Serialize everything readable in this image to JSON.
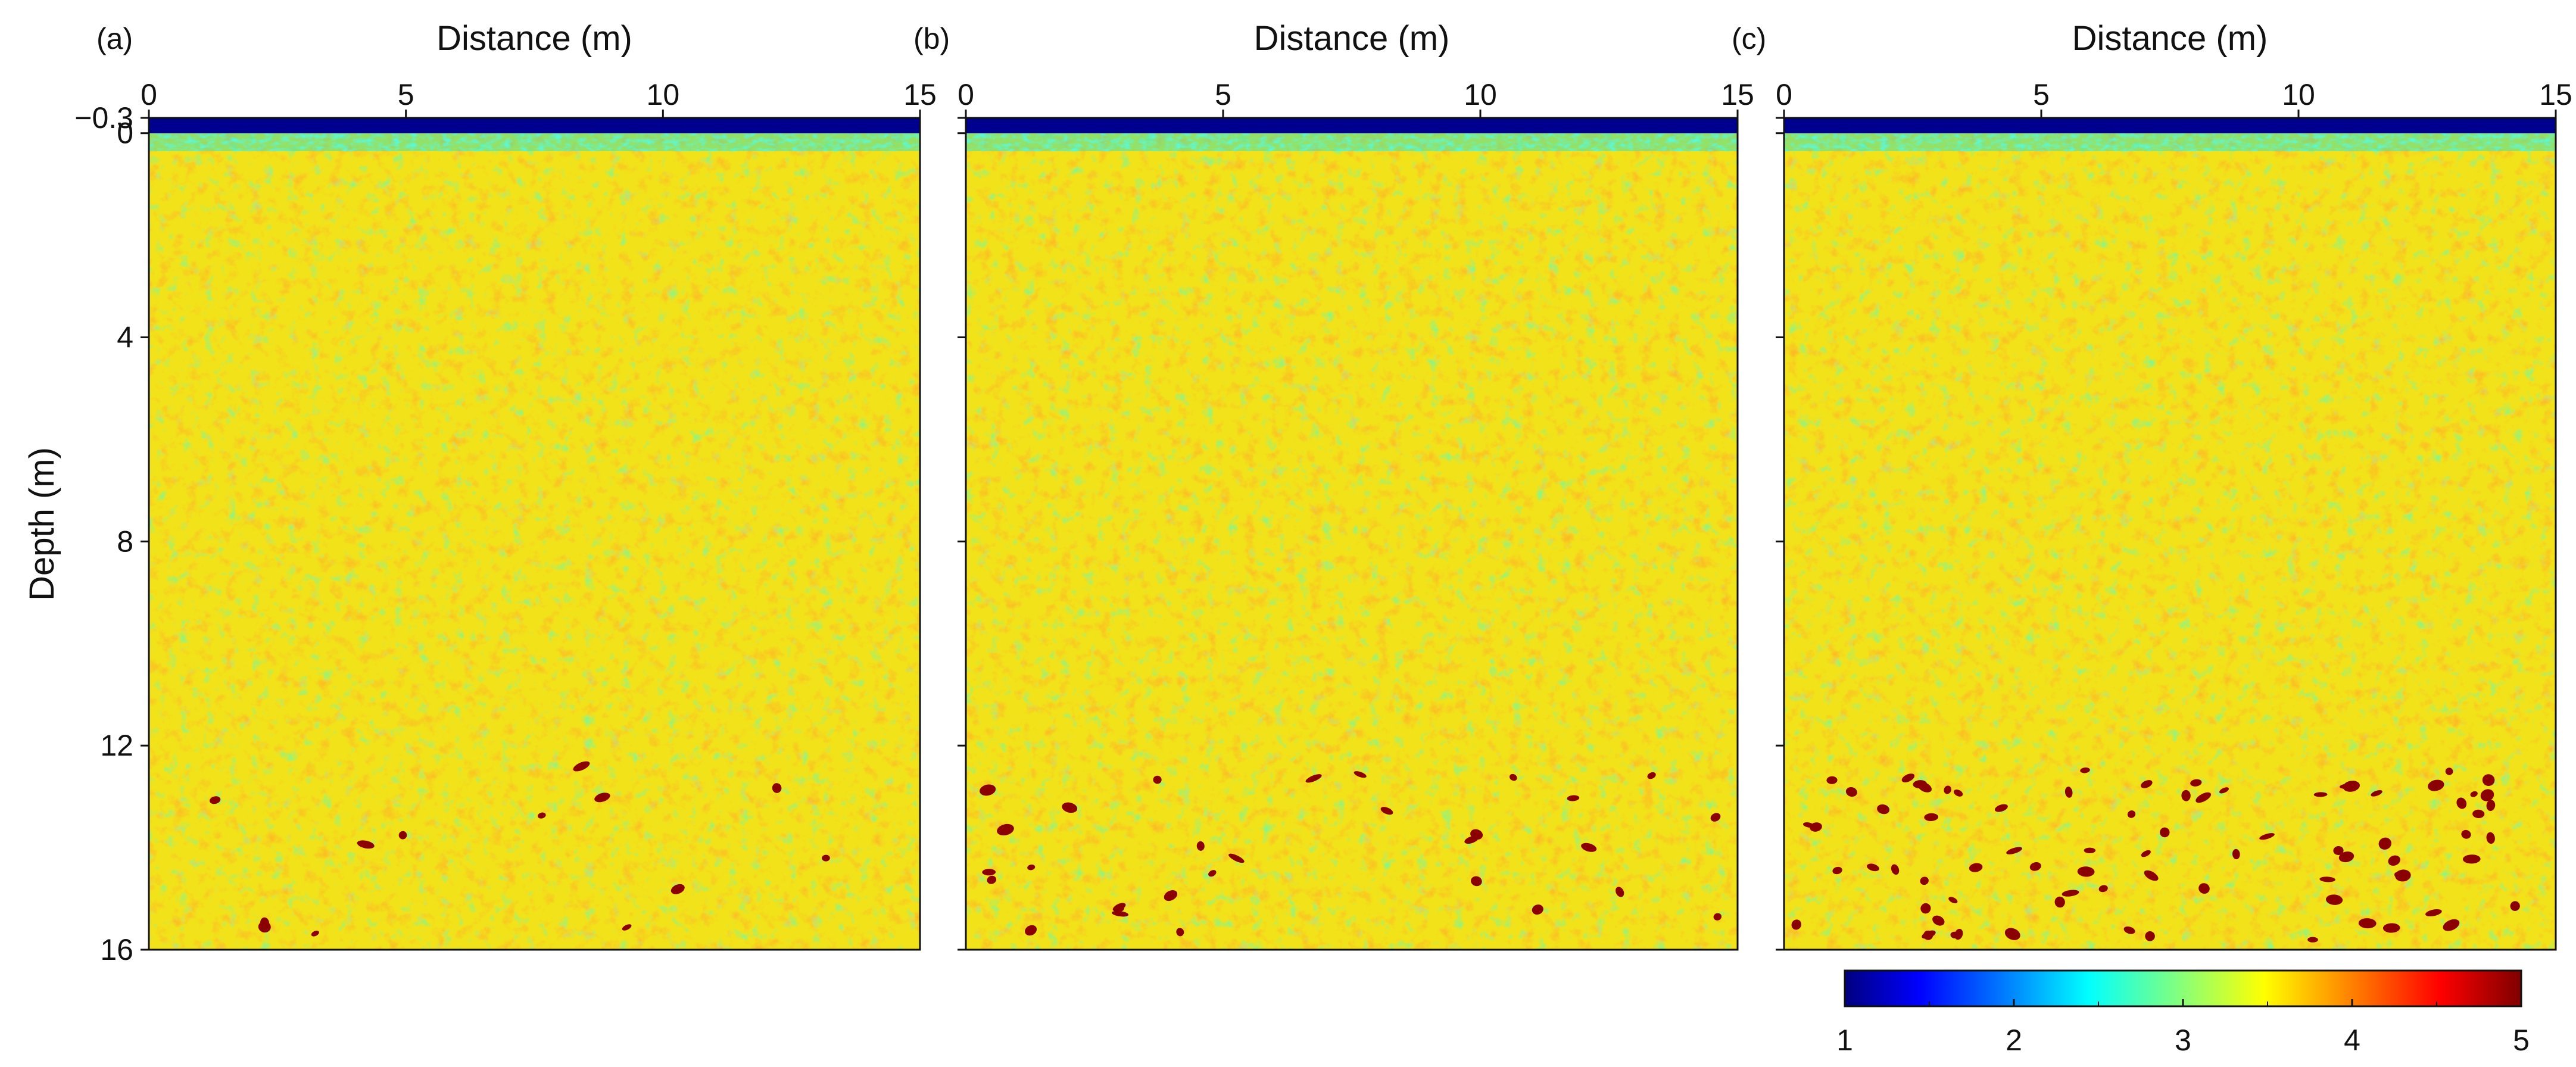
{
  "chart_data": [
    {
      "type": "heatmap",
      "panel_label": "(a)",
      "xlabel": "Distance (m)",
      "ylabel": "Depth (m)",
      "xlim": [
        0,
        15
      ],
      "ylim": [
        -0.3,
        16
      ],
      "x_ticks": [
        "0",
        "5",
        "10",
        "15"
      ],
      "y_ticks": [
        "−0.3",
        "0",
        "4",
        "8",
        "12",
        "16"
      ],
      "surface_layer_depth": [
        -0.3,
        0
      ],
      "surface_layer_value": 1,
      "background_value_range": [
        2.7,
        4.3
      ],
      "inclusion_value": 5,
      "inclusion_count": 13,
      "inclusion_depth_range": [
        12.4,
        16
      ]
    },
    {
      "type": "heatmap",
      "panel_label": "(b)",
      "xlabel": "Distance (m)",
      "ylabel": "",
      "xlim": [
        0,
        15
      ],
      "ylim": [
        -0.3,
        16
      ],
      "x_ticks": [
        "0",
        "5",
        "10",
        "15"
      ],
      "y_ticks": [
        "",
        "",
        "",
        "",
        "",
        ""
      ],
      "surface_layer_depth": [
        -0.3,
        0
      ],
      "surface_layer_value": 1,
      "background_value_range": [
        2.7,
        4.3
      ],
      "inclusion_value": 5,
      "inclusion_count": 30,
      "inclusion_depth_range": [
        12.4,
        16
      ]
    },
    {
      "type": "heatmap",
      "panel_label": "(c)",
      "xlabel": "Distance (m)",
      "ylabel": "",
      "xlim": [
        0,
        15
      ],
      "ylim": [
        -0.3,
        16
      ],
      "x_ticks": [
        "0",
        "5",
        "10",
        "15"
      ],
      "y_ticks": [
        "",
        "",
        "",
        "",
        "",
        ""
      ],
      "surface_layer_depth": [
        -0.3,
        0
      ],
      "surface_layer_value": 1,
      "background_value_range": [
        2.7,
        4.3
      ],
      "inclusion_value": 5,
      "inclusion_count": 78,
      "inclusion_depth_range": [
        12.4,
        16
      ]
    }
  ],
  "colorbar": {
    "min": 1,
    "max": 5,
    "tick_labels": [
      "1",
      "2",
      "3",
      "4",
      "5"
    ],
    "colors": [
      "#00007f",
      "#0000ff",
      "#0080ff",
      "#00ffff",
      "#80ff80",
      "#ffff00",
      "#ff8000",
      "#ff0000",
      "#7f0000"
    ]
  }
}
